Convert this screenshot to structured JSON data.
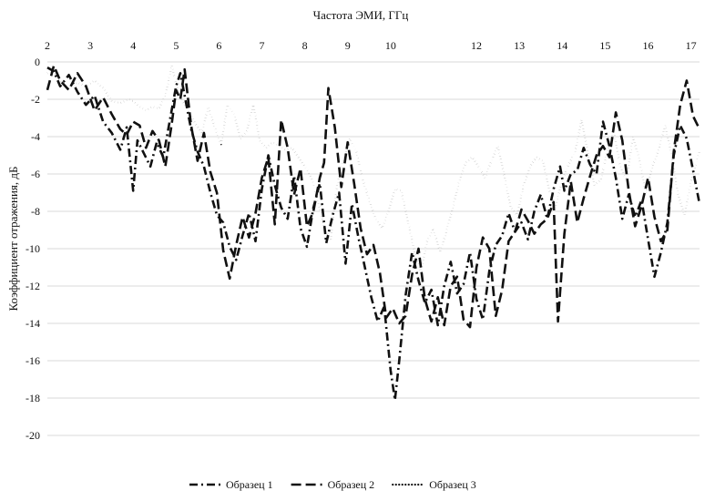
{
  "chart_data": {
    "type": "line",
    "title": "",
    "xlabel": "Частота ЭМИ, ГГц",
    "ylabel": "Коэффициент отражения, дБ",
    "x_axis_position": "top",
    "xlim": [
      2,
      17.2
    ],
    "ylim": [
      -20,
      0
    ],
    "x_ticks": [
      2,
      3,
      4,
      5,
      6,
      7,
      8,
      9,
      10,
      12,
      13,
      14,
      15,
      16,
      17
    ],
    "x_tick_labels": [
      "2",
      "3",
      "4",
      "5",
      "6",
      "7",
      "8",
      "9",
      "10",
      "12",
      "13",
      "14",
      "15",
      "16",
      "17"
    ],
    "y_ticks": [
      0,
      -2,
      -4,
      -6,
      -8,
      -10,
      -12,
      -14,
      -16,
      -18,
      -20
    ],
    "y_tick_labels": [
      "0",
      "-2",
      "-4",
      "-6",
      "-8",
      "-10",
      "-12",
      "-14",
      "-16",
      "-18",
      "-20"
    ],
    "grid": "horizontal",
    "legend_position": "bottom",
    "series": [
      {
        "name": "Образец 1",
        "style": "dashdot",
        "x": [
          2.0,
          2.15,
          2.3,
          2.5,
          2.7,
          2.9,
          3.1,
          3.3,
          3.5,
          3.7,
          3.85,
          4.0,
          4.1,
          4.25,
          4.4,
          4.55,
          4.7,
          4.85,
          5.0,
          5.1,
          5.2,
          5.35,
          5.5,
          5.65,
          5.8,
          5.95,
          6.1,
          6.25,
          6.4,
          6.55,
          6.7,
          6.85,
          7.0,
          7.15,
          7.3,
          7.45,
          7.6,
          7.75,
          7.9,
          8.05,
          8.2,
          8.35,
          8.5,
          8.65,
          8.8,
          8.95,
          9.1,
          9.25,
          9.4,
          9.55,
          9.7,
          9.85,
          10.0,
          10.1,
          10.2,
          10.35,
          10.5,
          10.65,
          10.8,
          10.95,
          11.1,
          11.25,
          11.4,
          11.55,
          11.7,
          11.85,
          12.0,
          12.15,
          12.3,
          12.45,
          12.6,
          12.75,
          12.9,
          13.05,
          13.2,
          13.35,
          13.5,
          13.65,
          13.8,
          13.95,
          14.05,
          14.2,
          14.35,
          14.5,
          14.65,
          14.8,
          14.95,
          15.1,
          15.25,
          15.4,
          15.55,
          15.7,
          15.85,
          16.0,
          16.15,
          16.3,
          16.45,
          16.6,
          16.75,
          16.9,
          17.05,
          17.2
        ],
        "values": [
          -0.3,
          -0.5,
          -1.3,
          -0.7,
          -1.6,
          -2.3,
          -1.8,
          -3.2,
          -3.8,
          -4.7,
          -3.5,
          -6.9,
          -4.2,
          -4.9,
          -5.6,
          -4.3,
          -5.1,
          -3.2,
          -1.3,
          -0.6,
          -1.8,
          -3.6,
          -4.8,
          -5.6,
          -7.0,
          -8.2,
          -8.6,
          -9.9,
          -10.6,
          -9.3,
          -8.1,
          -9.6,
          -6.8,
          -5.0,
          -6.6,
          -7.8,
          -8.4,
          -6.1,
          -8.9,
          -9.9,
          -7.8,
          -6.5,
          -9.7,
          -8.2,
          -7.0,
          -10.8,
          -7.6,
          -9.4,
          -11.0,
          -12.6,
          -13.9,
          -13.1,
          -16.5,
          -18.1,
          -16.0,
          -12.5,
          -10.2,
          -11.7,
          -12.9,
          -12.2,
          -14.1,
          -12.0,
          -10.7,
          -12.4,
          -11.9,
          -10.2,
          -12.7,
          -13.8,
          -11.2,
          -9.8,
          -9.3,
          -8.1,
          -9.1,
          -8.6,
          -9.5,
          -8.0,
          -7.1,
          -8.4,
          -6.8,
          -5.6,
          -6.9,
          -6.0,
          -5.8,
          -4.6,
          -5.5,
          -6.0,
          -3.2,
          -4.5,
          -6.2,
          -8.4,
          -7.1,
          -8.3,
          -7.4,
          -9.5,
          -11.5,
          -10.2,
          -8.6,
          -5.0,
          -3.4,
          -4.1,
          -5.8,
          -7.6
        ]
      },
      {
        "name": "Образец 2",
        "style": "dashed",
        "x": [
          2.0,
          2.15,
          2.3,
          2.5,
          2.7,
          2.9,
          3.1,
          3.3,
          3.5,
          3.7,
          3.85,
          4.0,
          4.15,
          4.3,
          4.45,
          4.6,
          4.75,
          4.9,
          5.0,
          5.1,
          5.2,
          5.35,
          5.5,
          5.65,
          5.8,
          5.95,
          6.1,
          6.25,
          6.4,
          6.55,
          6.7,
          6.85,
          7.0,
          7.15,
          7.3,
          7.45,
          7.6,
          7.75,
          7.9,
          8.05,
          8.2,
          8.35,
          8.45,
          8.55,
          8.7,
          8.85,
          9.0,
          9.15,
          9.3,
          9.45,
          9.6,
          9.75,
          9.9,
          10.05,
          10.2,
          10.35,
          10.5,
          10.65,
          10.8,
          10.95,
          11.1,
          11.25,
          11.4,
          11.55,
          11.7,
          11.85,
          12.0,
          12.15,
          12.3,
          12.45,
          12.6,
          12.75,
          12.9,
          13.05,
          13.2,
          13.35,
          13.5,
          13.65,
          13.8,
          13.9,
          14.05,
          14.2,
          14.35,
          14.5,
          14.65,
          14.8,
          14.95,
          15.1,
          15.25,
          15.4,
          15.55,
          15.7,
          15.85,
          16.0,
          16.15,
          16.3,
          16.45,
          16.6,
          16.75,
          16.9,
          17.05,
          17.2
        ],
        "values": [
          -1.5,
          -0.2,
          -1.0,
          -1.5,
          -0.6,
          -1.3,
          -2.6,
          -1.9,
          -2.8,
          -3.6,
          -3.9,
          -3.2,
          -3.4,
          -4.6,
          -3.7,
          -4.2,
          -5.6,
          -3.3,
          -1.5,
          -2.0,
          -0.4,
          -3.4,
          -5.3,
          -3.8,
          -5.9,
          -7.0,
          -10.1,
          -11.6,
          -9.8,
          -8.3,
          -9.4,
          -8.1,
          -6.2,
          -5.1,
          -8.7,
          -3.1,
          -4.6,
          -7.1,
          -5.7,
          -8.8,
          -8.0,
          -6.2,
          -5.4,
          -1.4,
          -3.5,
          -6.7,
          -4.3,
          -6.5,
          -8.9,
          -10.3,
          -9.8,
          -11.3,
          -13.7,
          -13.2,
          -14.0,
          -13.6,
          -11.4,
          -10.0,
          -12.7,
          -13.9,
          -12.6,
          -14.1,
          -12.0,
          -11.5,
          -13.8,
          -14.2,
          -11.0,
          -9.4,
          -10.0,
          -13.6,
          -12.2,
          -9.6,
          -9.1,
          -7.9,
          -8.5,
          -9.2,
          -8.7,
          -8.4,
          -7.5,
          -13.9,
          -9.2,
          -6.4,
          -8.6,
          -7.3,
          -6.1,
          -5.0,
          -4.5,
          -5.1,
          -2.7,
          -4.2,
          -6.9,
          -8.8,
          -7.7,
          -6.2,
          -8.3,
          -9.6,
          -9.0,
          -4.8,
          -2.3,
          -1.0,
          -2.9,
          -3.6
        ]
      },
      {
        "name": "Образец 3",
        "style": "dotted",
        "x": [
          2.0,
          2.15,
          2.3,
          2.5,
          2.7,
          2.9,
          3.1,
          3.3,
          3.5,
          3.7,
          3.9,
          4.0,
          4.15,
          4.3,
          4.45,
          4.6,
          4.75,
          4.9,
          5.0,
          5.15,
          5.3,
          5.45,
          5.6,
          5.75,
          5.9,
          6.05,
          6.2,
          6.35,
          6.5,
          6.65,
          6.8,
          6.95,
          7.1,
          7.25,
          7.4,
          7.55,
          7.7,
          7.85,
          8.0,
          8.15,
          8.3,
          8.45,
          8.6,
          8.75,
          8.9,
          9.05,
          9.2,
          9.35,
          9.5,
          9.65,
          9.8,
          9.95,
          10.1,
          10.25,
          10.4,
          10.55,
          10.7,
          10.85,
          11.0,
          11.15,
          11.3,
          11.45,
          11.6,
          11.75,
          11.9,
          12.05,
          12.2,
          12.35,
          12.5,
          12.65,
          12.8,
          12.95,
          13.1,
          13.25,
          13.4,
          13.55,
          13.7,
          13.85,
          14.0,
          14.15,
          14.3,
          14.45,
          14.6,
          14.75,
          14.9,
          15.05,
          15.2,
          15.35,
          15.5,
          15.65,
          15.8,
          15.95,
          16.1,
          16.25,
          16.4,
          16.55,
          16.7,
          16.85,
          17.0,
          17.2
        ],
        "values": [
          -0.6,
          -0.5,
          -1.0,
          -1.4,
          -1.1,
          -1.3,
          -1.0,
          -1.4,
          -2.1,
          -2.2,
          -2.0,
          -2.1,
          -2.4,
          -2.6,
          -2.4,
          -2.5,
          -1.8,
          -0.2,
          -1.2,
          -2.1,
          -2.6,
          -3.3,
          -3.8,
          -2.4,
          -3.5,
          -4.4,
          -2.3,
          -2.8,
          -4.1,
          -3.7,
          -2.3,
          -4.2,
          -4.6,
          -4.3,
          -4.5,
          -4.7,
          -4.6,
          -5.1,
          -5.6,
          -6.2,
          -7.4,
          -8.8,
          -9.6,
          -6.6,
          -5.3,
          -4.1,
          -4.8,
          -6.3,
          -7.4,
          -8.4,
          -8.9,
          -8.0,
          -6.8,
          -6.9,
          -8.5,
          -10.1,
          -11.3,
          -9.6,
          -8.9,
          -10.2,
          -9.1,
          -7.8,
          -6.4,
          -5.4,
          -5.1,
          -5.6,
          -6.2,
          -5.3,
          -4.5,
          -6.1,
          -7.8,
          -8.2,
          -6.6,
          -5.6,
          -5.1,
          -5.3,
          -6.9,
          -7.7,
          -6.3,
          -5.5,
          -4.8,
          -3.1,
          -4.9,
          -6.6,
          -6.3,
          -4.8,
          -3.7,
          -5.6,
          -6.3,
          -4.0,
          -5.3,
          -7.0,
          -5.6,
          -4.7,
          -3.4,
          -5.0,
          -7.1,
          -8.2,
          -6.4,
          -4.8
        ]
      }
    ]
  }
}
